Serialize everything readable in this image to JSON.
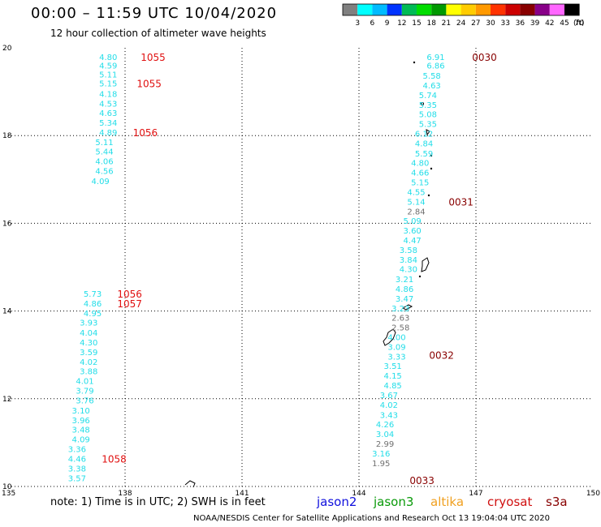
{
  "header": {
    "title": "00:00 – 11:59 UTC 10/04/2020",
    "subtitle": "12 hour collection of altimeter wave heights"
  },
  "footer": {
    "note": "note: 1) Time is in UTC; 2) SWH is in feet",
    "credit": "NOAA/NESDIS Center for Satellite Applications and Research    Oct 13 19:04:04 UTC 2020",
    "missions": [
      {
        "name": "jason2",
        "color": "#1010dd"
      },
      {
        "name": "jason3",
        "color": "#0a9a0a"
      },
      {
        "name": "altika",
        "color": "#f0a020"
      },
      {
        "name": "cryosat",
        "color": "#d01010"
      },
      {
        "name": "s3a",
        "color": "#880000"
      }
    ]
  },
  "colors": {
    "track": "#22dde8",
    "gray": "#707070",
    "time_red": "#e01010",
    "time_darkred": "#880000"
  },
  "chart_data": {
    "type": "scatter",
    "xlim": [
      135,
      150
    ],
    "ylim": [
      10,
      20
    ],
    "x_ticks": [
      135,
      138,
      141,
      144,
      147,
      150
    ],
    "y_ticks": [
      10,
      12,
      14,
      16,
      18,
      20
    ],
    "grid": true,
    "legend": {
      "levels": [
        "3",
        "6",
        "9",
        "12",
        "15",
        "18",
        "21",
        "24",
        "27",
        "30",
        "33",
        "36",
        "39",
        "42",
        "45",
        "70"
      ],
      "unit": "(ft)",
      "colors": [
        "#808080",
        "#00ffff",
        "#00bbff",
        "#0033ff",
        "#00bb55",
        "#00dd00",
        "#009900",
        "#ffff00",
        "#ffcc00",
        "#ff9900",
        "#ff3300",
        "#cc0000",
        "#880000",
        "#880088",
        "#ff66ff",
        "#000000"
      ]
    },
    "tracks": [
      {
        "name": "track-1",
        "values": [
          {
            "x": 137.8,
            "y": 19.8,
            "v": "4.80"
          },
          {
            "x": 137.8,
            "y": 19.6,
            "v": "4.59"
          },
          {
            "x": 137.8,
            "y": 19.4,
            "v": "5.11"
          },
          {
            "x": 137.8,
            "y": 19.2,
            "v": "5.15"
          },
          {
            "x": 137.8,
            "y": 18.96,
            "v": "4.18"
          },
          {
            "x": 137.8,
            "y": 18.73,
            "v": "4.53"
          },
          {
            "x": 137.8,
            "y": 18.52,
            "v": "4.63"
          },
          {
            "x": 137.8,
            "y": 18.3,
            "v": "5.34"
          },
          {
            "x": 137.8,
            "y": 18.08,
            "v": "4.89"
          },
          {
            "x": 137.7,
            "y": 17.86,
            "v": "5.11"
          },
          {
            "x": 137.7,
            "y": 17.64,
            "v": "5.44"
          },
          {
            "x": 137.7,
            "y": 17.42,
            "v": "4.06"
          },
          {
            "x": 137.7,
            "y": 17.2,
            "v": "4.56"
          },
          {
            "x": 137.6,
            "y": 16.97,
            "v": "4.09"
          },
          {
            "x": 137.4,
            "y": 14.4,
            "v": "5.73"
          },
          {
            "x": 137.4,
            "y": 14.18,
            "v": "4.86"
          },
          {
            "x": 137.4,
            "y": 13.96,
            "v": "4.95"
          },
          {
            "x": 137.3,
            "y": 13.74,
            "v": "3.93"
          },
          {
            "x": 137.3,
            "y": 13.51,
            "v": "4.04"
          },
          {
            "x": 137.3,
            "y": 13.29,
            "v": "4.30"
          },
          {
            "x": 137.3,
            "y": 13.07,
            "v": "3.59"
          },
          {
            "x": 137.3,
            "y": 12.85,
            "v": "4.02"
          },
          {
            "x": 137.3,
            "y": 12.63,
            "v": "3.88"
          },
          {
            "x": 137.2,
            "y": 12.41,
            "v": "4.01"
          },
          {
            "x": 137.2,
            "y": 12.19,
            "v": "3.79"
          },
          {
            "x": 137.2,
            "y": 11.97,
            "v": "3.76"
          },
          {
            "x": 137.1,
            "y": 11.74,
            "v": "3.10"
          },
          {
            "x": 137.1,
            "y": 11.52,
            "v": "3.96"
          },
          {
            "x": 137.1,
            "y": 11.3,
            "v": "3.48"
          },
          {
            "x": 137.1,
            "y": 11.08,
            "v": "4.09"
          },
          {
            "x": 137.0,
            "y": 10.86,
            "v": "3.36"
          },
          {
            "x": 137.0,
            "y": 10.64,
            "v": "4.46"
          },
          {
            "x": 137.0,
            "y": 10.42,
            "v": "3.38"
          },
          {
            "x": 137.0,
            "y": 10.19,
            "v": "3.57"
          }
        ],
        "time_labels": [
          {
            "x": 138.4,
            "y": 19.8,
            "v": "1055"
          },
          {
            "x": 138.3,
            "y": 19.2,
            "v": "1055"
          },
          {
            "x": 138.2,
            "y": 18.08,
            "v": "1056"
          },
          {
            "x": 137.8,
            "y": 14.4,
            "v": "1056"
          },
          {
            "x": 137.8,
            "y": 14.18,
            "v": "1057"
          },
          {
            "x": 137.4,
            "y": 10.64,
            "v": "1058"
          }
        ]
      },
      {
        "name": "track-2",
        "values": [
          {
            "x": 146.2,
            "y": 19.8,
            "v": "6.91"
          },
          {
            "x": 146.2,
            "y": 19.6,
            "v": "6.86"
          },
          {
            "x": 146.1,
            "y": 19.37,
            "v": "5.58"
          },
          {
            "x": 146.1,
            "y": 19.15,
            "v": "4.63"
          },
          {
            "x": 146.0,
            "y": 18.93,
            "v": "5.74"
          },
          {
            "x": 146.0,
            "y": 18.71,
            "v": "5.35"
          },
          {
            "x": 146.0,
            "y": 18.49,
            "v": "5.08"
          },
          {
            "x": 146.0,
            "y": 18.27,
            "v": "5.35"
          },
          {
            "x": 145.9,
            "y": 18.05,
            "v": "6.12"
          },
          {
            "x": 145.9,
            "y": 17.83,
            "v": "4.84"
          },
          {
            "x": 145.9,
            "y": 17.6,
            "v": "5.59"
          },
          {
            "x": 145.8,
            "y": 17.38,
            "v": "4.80"
          },
          {
            "x": 145.8,
            "y": 17.16,
            "v": "4.66"
          },
          {
            "x": 145.8,
            "y": 16.94,
            "v": "5.15"
          },
          {
            "x": 145.7,
            "y": 16.72,
            "v": "4.55"
          },
          {
            "x": 145.7,
            "y": 16.5,
            "v": "5.14"
          },
          {
            "x": 145.7,
            "y": 16.28,
            "v": "2.84",
            "gray": true
          },
          {
            "x": 145.6,
            "y": 16.06,
            "v": "5.09"
          },
          {
            "x": 145.6,
            "y": 15.84,
            "v": "3.60"
          },
          {
            "x": 145.6,
            "y": 15.62,
            "v": "4.47"
          },
          {
            "x": 145.5,
            "y": 15.4,
            "v": "3.58"
          },
          {
            "x": 145.5,
            "y": 15.18,
            "v": "3.84"
          },
          {
            "x": 145.5,
            "y": 14.96,
            "v": "4.30"
          },
          {
            "x": 145.4,
            "y": 14.73,
            "v": "3.21"
          },
          {
            "x": 145.4,
            "y": 14.51,
            "v": "4.86"
          },
          {
            "x": 145.4,
            "y": 14.29,
            "v": "3.47"
          },
          {
            "x": 145.3,
            "y": 14.07,
            "v": "3.23"
          },
          {
            "x": 145.3,
            "y": 13.85,
            "v": "2.63",
            "gray": true
          },
          {
            "x": 145.3,
            "y": 13.63,
            "v": "2.58",
            "gray": true
          },
          {
            "x": 145.2,
            "y": 13.41,
            "v": "4.00"
          },
          {
            "x": 145.2,
            "y": 13.19,
            "v": "3.09"
          },
          {
            "x": 145.2,
            "y": 12.97,
            "v": "3.33"
          },
          {
            "x": 145.1,
            "y": 12.75,
            "v": "3.51"
          },
          {
            "x": 145.1,
            "y": 12.53,
            "v": "4.15"
          },
          {
            "x": 145.1,
            "y": 12.31,
            "v": "4.85"
          },
          {
            "x": 145.0,
            "y": 12.09,
            "v": "3.67"
          },
          {
            "x": 145.0,
            "y": 11.87,
            "v": "4.02"
          },
          {
            "x": 145.0,
            "y": 11.64,
            "v": "3.43"
          },
          {
            "x": 144.9,
            "y": 11.42,
            "v": "4.26"
          },
          {
            "x": 144.9,
            "y": 11.2,
            "v": "3.04"
          },
          {
            "x": 144.9,
            "y": 10.98,
            "v": "2.99",
            "gray": true
          },
          {
            "x": 144.8,
            "y": 10.76,
            "v": "3.16"
          },
          {
            "x": 144.8,
            "y": 10.54,
            "v": "1.95",
            "gray": true
          }
        ],
        "time_labels": [
          {
            "x": 146.9,
            "y": 19.8,
            "v": "0030"
          },
          {
            "x": 146.3,
            "y": 16.5,
            "v": "0031"
          },
          {
            "x": 145.8,
            "y": 13.0,
            "v": "0032"
          },
          {
            "x": 145.3,
            "y": 10.15,
            "v": "0033"
          }
        ]
      }
    ]
  }
}
